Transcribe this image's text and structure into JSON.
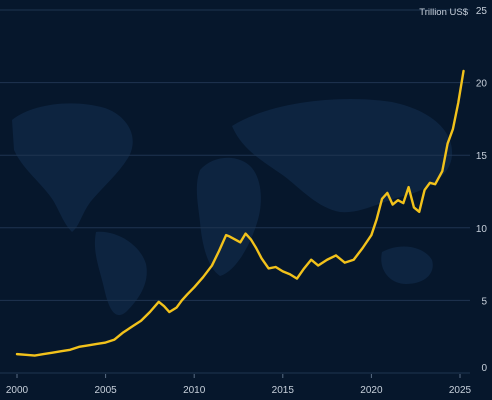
{
  "chart_data": {
    "type": "line",
    "title": "",
    "xlabel": "",
    "ylabel": "Trillion US$",
    "xlim": [
      2000,
      2025
    ],
    "ylim": [
      0,
      25
    ],
    "x_ticks": [
      "2000",
      "2005",
      "2010",
      "2015",
      "2020",
      "2025"
    ],
    "y_ticks": [
      "0",
      "5",
      "10",
      "15",
      "20",
      "25"
    ],
    "grid": "horizontal",
    "legend": "none",
    "series": [
      {
        "color": "#f2c21b",
        "x": [
          2000.0,
          2000.5,
          2001.0,
          2001.5,
          2002.0,
          2002.5,
          2003.0,
          2003.5,
          2004.0,
          2004.5,
          2005.0,
          2005.5,
          2006.0,
          2006.5,
          2007.0,
          2007.5,
          2008.0,
          2008.3,
          2008.6,
          2009.0,
          2009.3,
          2009.6,
          2010.0,
          2010.5,
          2011.0,
          2011.4,
          2011.8,
          2012.0,
          2012.3,
          2012.6,
          2012.9,
          2013.2,
          2013.5,
          2013.8,
          2014.2,
          2014.6,
          2015.0,
          2015.4,
          2015.8,
          2016.2,
          2016.6,
          2017.0,
          2017.5,
          2018.0,
          2018.5,
          2019.0,
          2019.5,
          2020.0,
          2020.3,
          2020.6,
          2020.9,
          2021.2,
          2021.5,
          2021.8,
          2022.1,
          2022.4,
          2022.7,
          2023.0,
          2023.3,
          2023.6,
          2024.0,
          2024.3,
          2024.6,
          2024.9,
          2025.2
        ],
        "y": [
          1.3,
          1.25,
          1.2,
          1.3,
          1.4,
          1.5,
          1.6,
          1.8,
          1.9,
          2.0,
          2.1,
          2.3,
          2.8,
          3.2,
          3.6,
          4.2,
          4.9,
          4.6,
          4.2,
          4.5,
          5.0,
          5.4,
          5.9,
          6.6,
          7.4,
          8.4,
          9.5,
          9.4,
          9.2,
          9.0,
          9.6,
          9.2,
          8.6,
          7.9,
          7.2,
          7.3,
          7.0,
          6.8,
          6.5,
          7.2,
          7.8,
          7.4,
          7.8,
          8.1,
          7.6,
          7.8,
          8.6,
          9.5,
          10.6,
          12.0,
          12.4,
          11.6,
          11.9,
          11.7,
          12.8,
          11.4,
          11.1,
          12.6,
          13.1,
          13.0,
          13.9,
          15.8,
          16.8,
          18.6,
          20.8
        ]
      }
    ]
  }
}
